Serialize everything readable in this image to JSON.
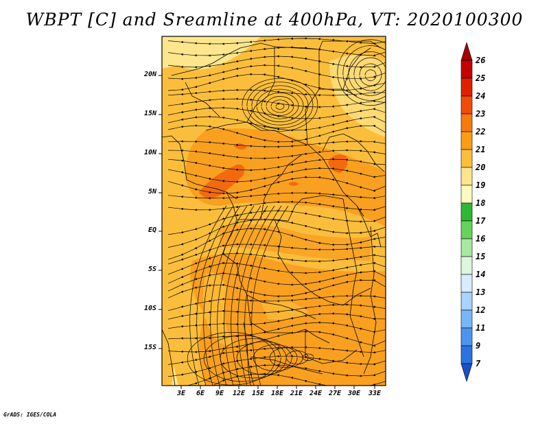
{
  "title": "WBPT [C] and Sreamline at 400hPa, VT: 2020100300",
  "credit": "GrADS: IGES/COLA",
  "lat_labels": [
    "20N",
    "15N",
    "10N",
    "5N",
    "EQ",
    "5S",
    "10S",
    "15S"
  ],
  "lon_labels": [
    "3E",
    "6E",
    "9E",
    "12E",
    "15E",
    "18E",
    "21E",
    "24E",
    "27E",
    "30E",
    "33E"
  ],
  "colorbar": {
    "labels": [
      "26",
      "25",
      "24",
      "23",
      "22",
      "21",
      "20",
      "19",
      "18",
      "17",
      "16",
      "15",
      "14",
      "13",
      "12",
      "11",
      "9",
      "7"
    ],
    "colors": [
      "#a50000",
      "#c40000",
      "#e02000",
      "#f24a0a",
      "#f77a0d",
      "#fb9c12",
      "#fbbe3c",
      "#fde68c",
      "#fffac0",
      "#2fb833",
      "#66d45c",
      "#a8e8a0",
      "#ddf6dd",
      "#d8ecff",
      "#a9d3ff",
      "#78b6f7",
      "#4c95ef",
      "#2a73e0",
      "#1850c8"
    ]
  }
}
